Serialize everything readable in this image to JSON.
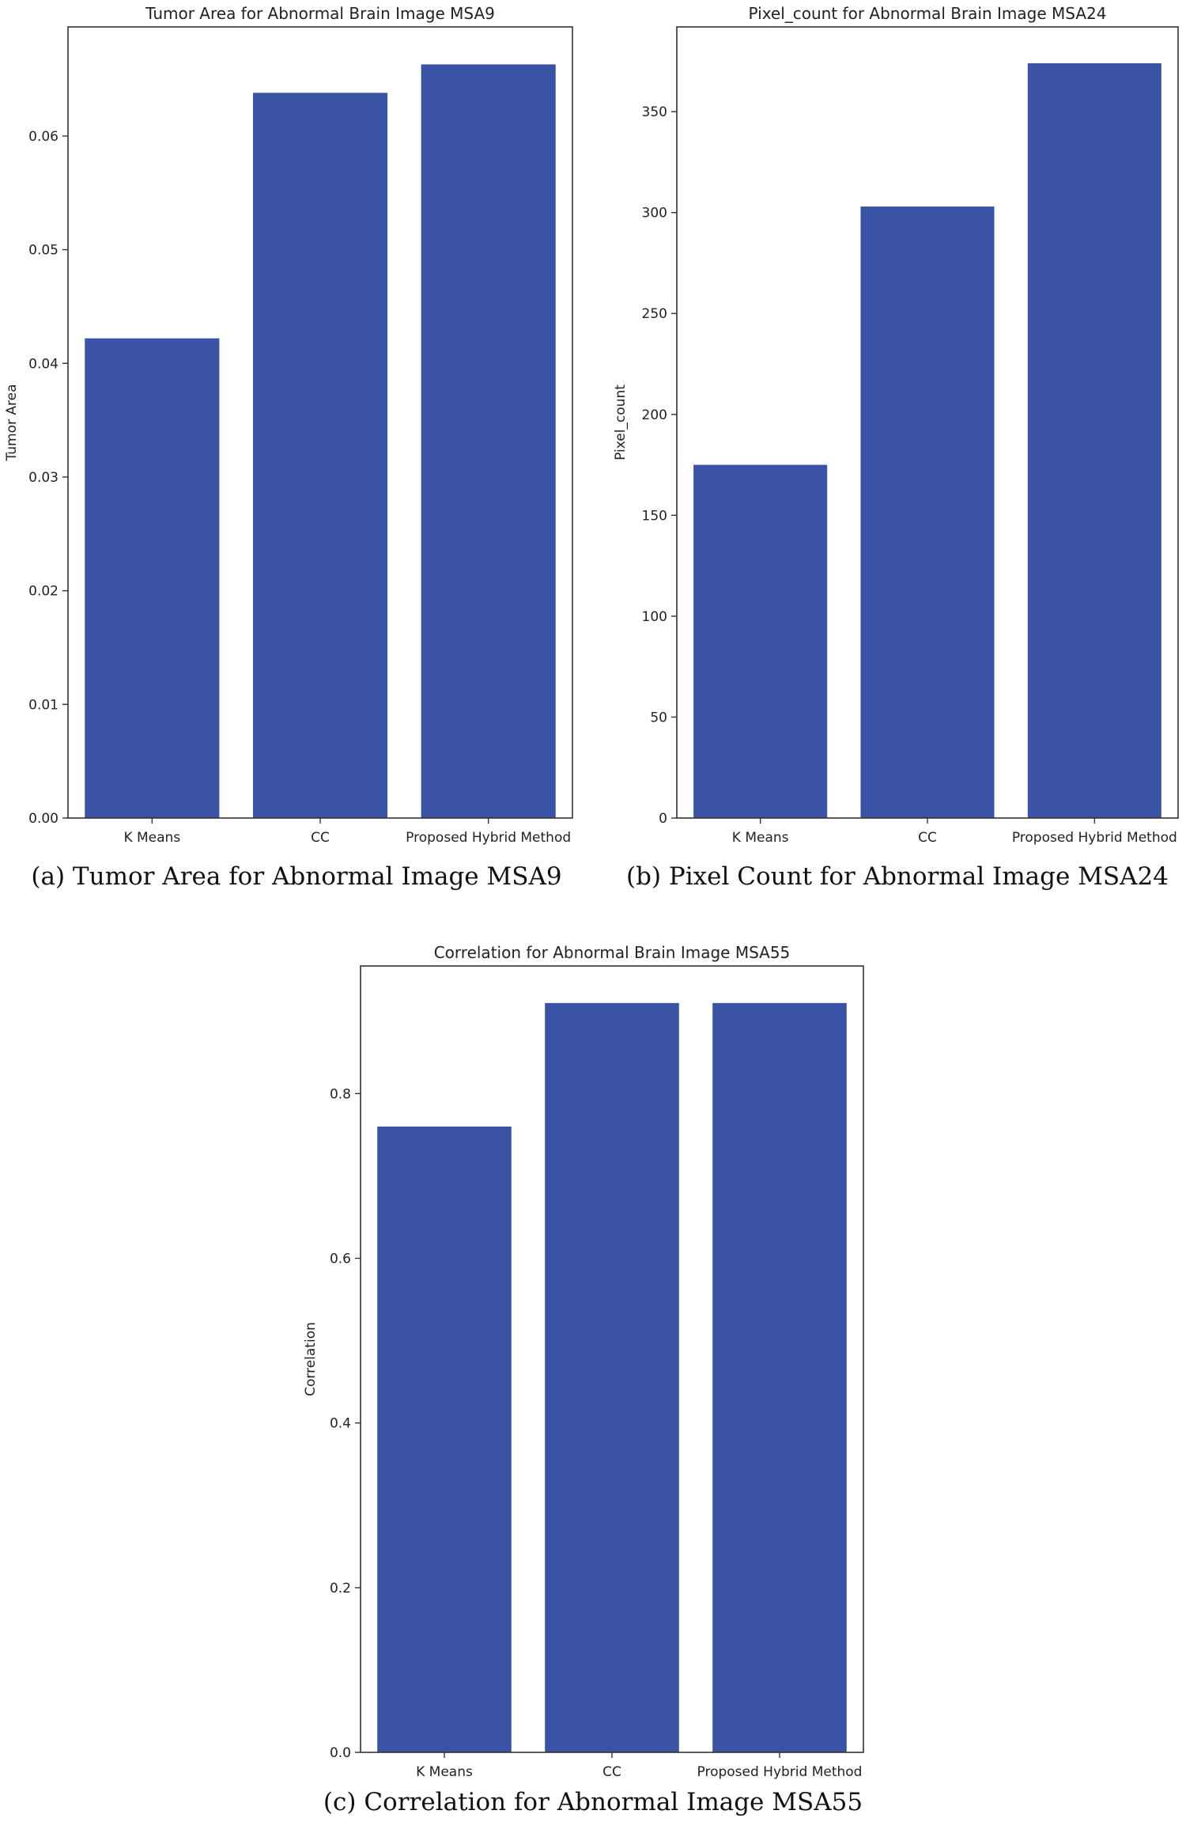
{
  "captions": {
    "a": "(a) Tumor Area for Abnormal Image MSA9",
    "b": "(b) Pixel Count for Abnormal Image MSA24",
    "c": "(c) Correlation for Abnormal Image MSA55"
  },
  "colors": {
    "bar": "#3a53a4",
    "axis": "#333333",
    "text": "#222222"
  },
  "chart_data": [
    {
      "type": "bar",
      "title": "Tumor Area for Abnormal Brain Image MSA9",
      "xlabel": "",
      "ylabel": "Tumor Area",
      "categories": [
        "K Means",
        "CC",
        "Proposed Hybrid Method"
      ],
      "values": [
        0.0422,
        0.0638,
        0.0663
      ],
      "ylim": [
        0,
        0.0696
      ],
      "yticks": [
        0.0,
        0.01,
        0.02,
        0.03,
        0.04,
        0.05,
        0.06
      ],
      "ytick_labels": [
        "0.00",
        "0.01",
        "0.02",
        "0.03",
        "0.04",
        "0.05",
        "0.06"
      ],
      "grid": false
    },
    {
      "type": "bar",
      "title": "Pixel_count for Abnormal Brain Image MSA24",
      "xlabel": "",
      "ylabel": "Pixel_count",
      "categories": [
        "K Means",
        "CC",
        "Proposed Hybrid Method"
      ],
      "values": [
        175,
        303,
        374
      ],
      "ylim": [
        0,
        392
      ],
      "yticks": [
        0,
        50,
        100,
        150,
        200,
        250,
        300,
        350
      ],
      "ytick_labels": [
        "0",
        "50",
        "100",
        "150",
        "200",
        "250",
        "300",
        "350"
      ],
      "grid": false
    },
    {
      "type": "bar",
      "title": "Correlation for Abnormal Brain Image MSA55",
      "xlabel": "",
      "ylabel": "Correlation",
      "categories": [
        "K Means",
        "CC",
        "Proposed Hybrid Method"
      ],
      "values": [
        0.76,
        0.91,
        0.91
      ],
      "ylim": [
        0,
        0.955
      ],
      "yticks": [
        0.0,
        0.2,
        0.4,
        0.6,
        0.8
      ],
      "ytick_labels": [
        "0.0",
        "0.2",
        "0.4",
        "0.6",
        "0.8"
      ],
      "grid": false
    }
  ]
}
